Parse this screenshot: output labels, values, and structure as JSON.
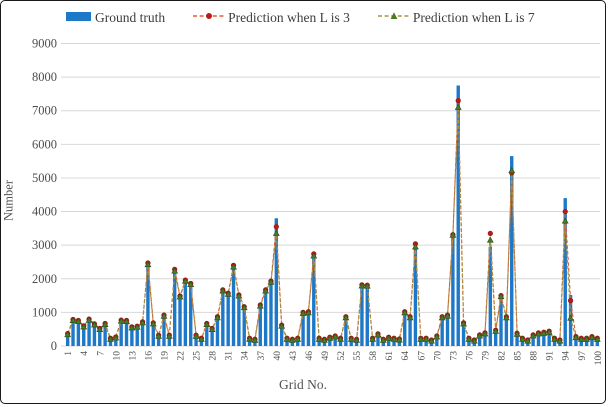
{
  "legend": {
    "items": [
      {
        "label": "Ground truth",
        "swatch": "bar-swatch",
        "color": "#1e78c8"
      },
      {
        "label": "Prediction when L is 3",
        "swatch": "dashed-line-dot-marker",
        "line_color": "#e05a31",
        "marker_color": "#bc1b14"
      },
      {
        "label": "Prediction when L is 7",
        "swatch": "dashed-line-triangle-marker",
        "line_color": "#a59440",
        "marker_color": "#4a7a24"
      }
    ]
  },
  "chart_data": {
    "type": "bar",
    "title": "",
    "xlabel": "Grid No.",
    "ylabel": "Number",
    "ylim": [
      0,
      9000
    ],
    "ytick_step": 1000,
    "ytick_labels": [
      "0",
      "1000",
      "2000",
      "3000",
      "4000",
      "5000",
      "6000",
      "7000",
      "8000",
      "9000"
    ],
    "xtick_labels": [
      "1",
      "4",
      "7",
      "10",
      "13",
      "16",
      "19",
      "22",
      "25",
      "28",
      "31",
      "34",
      "37",
      "40",
      "43",
      "46",
      "49",
      "52",
      "55",
      "58",
      "61",
      "64",
      "67",
      "70",
      "73",
      "76",
      "79",
      "82",
      "85",
      "88",
      "91",
      "94",
      "97",
      "100"
    ],
    "x_count": 100,
    "grid": true,
    "legend_position": "top",
    "grid_color": "#d8d8d8",
    "tick_text_color": "#4d4d4d",
    "series": [
      {
        "name": "Ground truth",
        "type": "bar",
        "color": "#1e78c8",
        "values": [
          300,
          700,
          680,
          530,
          730,
          600,
          450,
          600,
          160,
          200,
          700,
          690,
          500,
          520,
          650,
          2450,
          620,
          250,
          850,
          250,
          2200,
          1400,
          1900,
          1800,
          250,
          160,
          600,
          450,
          800,
          1600,
          1500,
          2300,
          1450,
          1100,
          160,
          130,
          1150,
          1600,
          1850,
          3800,
          550,
          160,
          130,
          160,
          930,
          950,
          2650,
          160,
          130,
          190,
          230,
          160,
          800,
          160,
          130,
          1750,
          1740,
          160,
          290,
          130,
          190,
          160,
          140,
          950,
          800,
          3100,
          160,
          160,
          110,
          230,
          800,
          850,
          3250,
          7750,
          600,
          160,
          110,
          260,
          310,
          2950,
          400,
          1430,
          800,
          5650,
          300,
          160,
          110,
          260,
          310,
          330,
          360,
          160,
          110,
          4400,
          1520,
          210,
          160,
          160,
          210,
          160
        ]
      },
      {
        "name": "Prediction when L is 3",
        "type": "line",
        "marker": "circle",
        "line_color": "#e05a31",
        "marker_color": "#bc1b14",
        "marker_edge": "#8f120e",
        "values": [
          370,
          790,
          760,
          600,
          800,
          660,
          520,
          670,
          230,
          270,
          770,
          760,
          570,
          590,
          720,
          2470,
          690,
          320,
          920,
          320,
          2280,
          1490,
          1960,
          1860,
          320,
          230,
          670,
          520,
          870,
          1670,
          1570,
          2400,
          1520,
          1170,
          230,
          200,
          1220,
          1670,
          1930,
          3550,
          620,
          230,
          200,
          230,
          1000,
          1020,
          2740,
          230,
          200,
          260,
          300,
          230,
          870,
          230,
          200,
          1820,
          1810,
          230,
          360,
          200,
          260,
          230,
          210,
          1020,
          870,
          3040,
          230,
          230,
          180,
          300,
          870,
          920,
          3310,
          7300,
          690,
          230,
          180,
          330,
          390,
          3350,
          470,
          1500,
          870,
          5150,
          380,
          230,
          180,
          330,
          390,
          410,
          440,
          230,
          180,
          4000,
          1350,
          280,
          230,
          230,
          280,
          230
        ]
      },
      {
        "name": "Prediction when L is 7",
        "type": "line",
        "marker": "triangle",
        "line_color": "#a59440",
        "marker_color": "#4a7a24",
        "marker_edge": "#2f4d16",
        "values": [
          340,
          760,
          730,
          570,
          770,
          630,
          490,
          640,
          200,
          240,
          740,
          730,
          540,
          560,
          690,
          2420,
          660,
          290,
          890,
          290,
          2230,
          1460,
          1930,
          1830,
          290,
          200,
          640,
          490,
          840,
          1640,
          1540,
          2350,
          1490,
          1140,
          200,
          170,
          1190,
          1640,
          1900,
          3350,
          590,
          200,
          170,
          200,
          970,
          990,
          2680,
          200,
          170,
          230,
          270,
          200,
          840,
          200,
          170,
          1790,
          1780,
          200,
          330,
          170,
          230,
          200,
          180,
          990,
          840,
          2950,
          200,
          200,
          150,
          270,
          840,
          890,
          3300,
          7100,
          660,
          200,
          150,
          300,
          360,
          3150,
          440,
          1470,
          840,
          5220,
          350,
          200,
          150,
          300,
          360,
          380,
          410,
          200,
          150,
          3720,
          830,
          250,
          200,
          200,
          250,
          200
        ]
      }
    ]
  }
}
